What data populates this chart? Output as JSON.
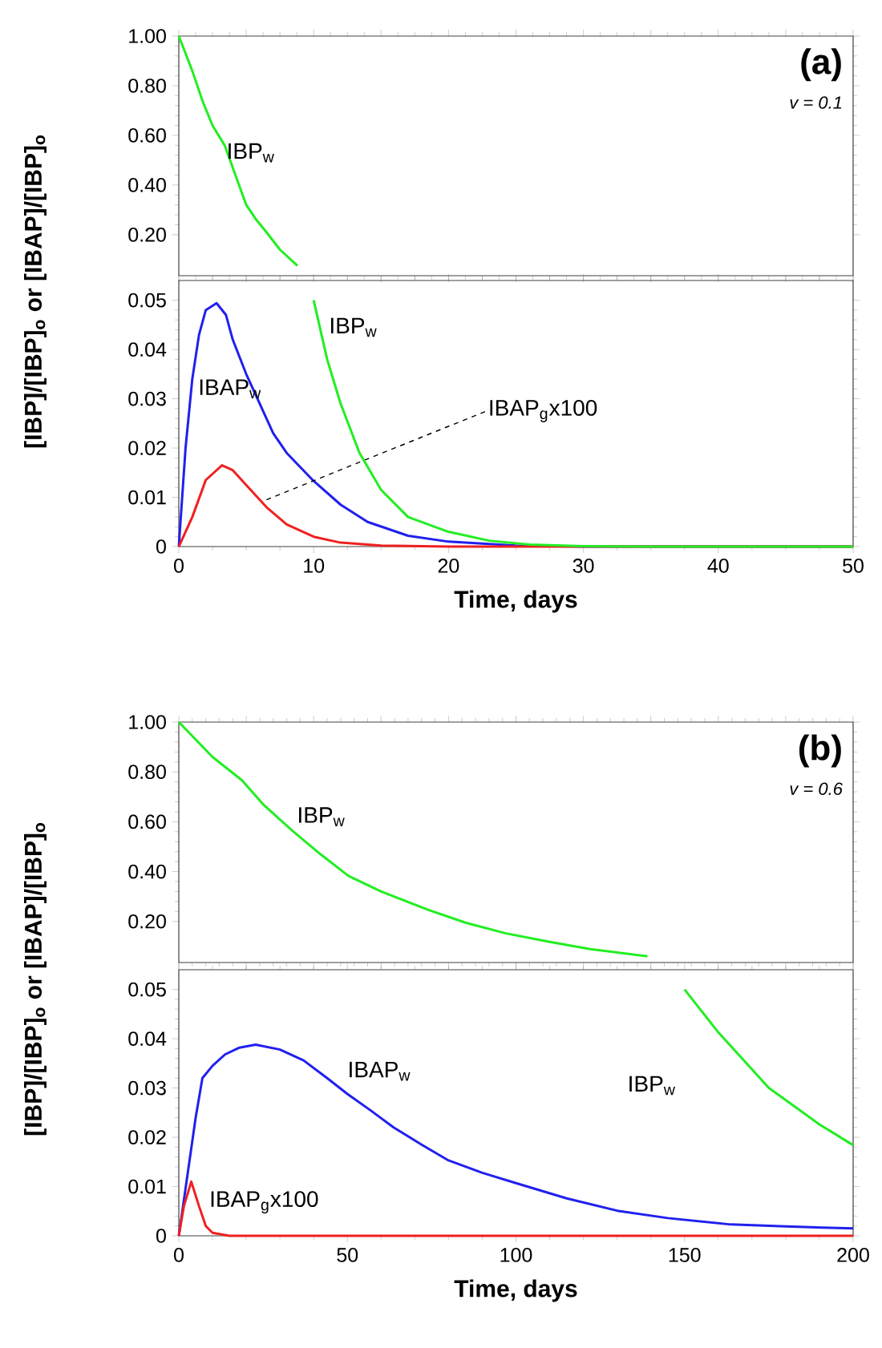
{
  "chart_data": [
    {
      "type": "line",
      "xlim": [
        0,
        50
      ],
      "ylim": [
        0.035,
        1.0
      ],
      "yticks": [
        {
          "value": 0.2,
          "label": "0.20"
        },
        {
          "value": 0.4,
          "label": "0.40"
        },
        {
          "value": 0.6,
          "label": "0.60"
        },
        {
          "value": 0.8,
          "label": "0.80"
        },
        {
          "value": 1.0,
          "label": "1.00"
        }
      ],
      "tick_labels": "y",
      "annotations": [
        "(a)",
        "v = 0.1"
      ],
      "series": [
        {
          "name": "IBP$_{w}$",
          "color": "#22ee22",
          "x": [
            0,
            1,
            1.75,
            2.5,
            3.4,
            4.2,
            5,
            5.75,
            6.5,
            7.5,
            8.8
          ],
          "values": [
            1.0,
            0.86,
            0.74,
            0.64,
            0.56,
            0.44,
            0.32,
            0.26,
            0.21,
            0.14,
            0.075
          ]
        }
      ]
    },
    {
      "type": "line",
      "xlim": [
        0,
        50
      ],
      "ylim": [
        0,
        0.054
      ],
      "xticks": [
        0,
        10,
        20,
        30,
        40,
        50
      ],
      "yticks": [
        0,
        0.01,
        0.02,
        0.03,
        0.04,
        0.05
      ],
      "xlabel": "Time, days",
      "ylabel": "[IBP]/[IBP]$_{o}$ or [IBAP]/[IBP]$_{o}$",
      "series": [
        {
          "name": "IBAP$_{w}$",
          "color": "#2020ee",
          "x": [
            0,
            0.5,
            1,
            1.5,
            2,
            2.8,
            3.5,
            4,
            5,
            6,
            7,
            8,
            10,
            12,
            14,
            17,
            20,
            25,
            30,
            50
          ],
          "values": [
            0,
            0.02,
            0.034,
            0.043,
            0.048,
            0.0494,
            0.047,
            0.042,
            0.035,
            0.029,
            0.023,
            0.019,
            0.0133,
            0.0085,
            0.005,
            0.0022,
            0.001,
            0.0002,
            0,
            0
          ]
        },
        {
          "name": "IBAP$_{g}$x100",
          "color": "#f02020",
          "x": [
            0,
            1,
            2,
            3.2,
            4,
            5,
            6.5,
            8,
            10,
            12,
            15,
            20,
            50
          ],
          "values": [
            0,
            0.006,
            0.0135,
            0.0165,
            0.0155,
            0.0125,
            0.008,
            0.0045,
            0.002,
            0.0008,
            0.0002,
            0,
            0
          ]
        },
        {
          "name": "IBP$_{w}$",
          "color": "#22ee22",
          "x": [
            10,
            11,
            12,
            13.4,
            15,
            17,
            20,
            23,
            26,
            30,
            35,
            50
          ],
          "values": [
            0.05,
            0.038,
            0.029,
            0.019,
            0.0115,
            0.006,
            0.003,
            0.0012,
            0.0004,
            0.0001,
            0,
            0
          ]
        }
      ]
    },
    {
      "type": "line",
      "xlim": [
        0,
        200
      ],
      "ylim": [
        0.035,
        1.0
      ],
      "yticks": [
        {
          "value": 0.2,
          "label": "0.20"
        },
        {
          "value": 0.4,
          "label": "0.40"
        },
        {
          "value": 0.6,
          "label": "0.60"
        },
        {
          "value": 0.8,
          "label": "0.80"
        },
        {
          "value": 1.0,
          "label": "1.00"
        }
      ],
      "tick_labels": "y",
      "annotations": [
        "(b)",
        "v = 0.6"
      ],
      "series": [
        {
          "name": "IBP$_{w}$",
          "color": "#22ee22",
          "x": [
            0,
            10,
            18.7,
            25,
            33.7,
            42,
            50.3,
            60,
            73.7,
            85,
            97,
            110,
            122,
            139
          ],
          "values": [
            1.0,
            0.86,
            0.767,
            0.67,
            0.564,
            0.47,
            0.383,
            0.32,
            0.248,
            0.195,
            0.152,
            0.118,
            0.089,
            0.06
          ]
        }
      ]
    },
    {
      "type": "line",
      "xlim": [
        0,
        200
      ],
      "ylim": [
        0,
        0.054
      ],
      "xticks": [
        0,
        50,
        100,
        150,
        200
      ],
      "yticks": [
        0,
        0.01,
        0.02,
        0.03,
        0.04,
        0.05
      ],
      "xlabel": "Time, days",
      "ylabel": "[IBP]/[IBP]$_{o}$ or [IBAP]/[IBP]$_{o}$",
      "series": [
        {
          "name": "IBAP$_{w}$",
          "color": "#2020ee",
          "x": [
            0,
            2,
            5,
            7,
            10,
            13.7,
            18,
            22.8,
            30,
            37,
            44,
            50,
            57,
            63.7,
            72,
            80,
            90,
            100,
            115,
            130,
            145,
            163.7,
            180,
            200
          ],
          "values": [
            0,
            0.0096,
            0.024,
            0.032,
            0.0345,
            0.0368,
            0.0382,
            0.0388,
            0.0378,
            0.0356,
            0.032,
            0.0288,
            0.0254,
            0.022,
            0.0185,
            0.0153,
            0.0128,
            0.0107,
            0.0076,
            0.0051,
            0.0036,
            0.0023,
            0.0019,
            0.0015
          ]
        },
        {
          "name": "IBAP$_{g}$x100",
          "color": "#f02020",
          "x": [
            0,
            1.5,
            3.7,
            6,
            8,
            10,
            15,
            200
          ],
          "values": [
            0,
            0.006,
            0.011,
            0.006,
            0.002,
            0.0006,
            0,
            0
          ]
        },
        {
          "name": "IBP$_{w}$",
          "color": "#22ee22",
          "x": [
            150,
            160,
            175,
            190,
            200
          ],
          "values": [
            0.05,
            0.0413,
            0.03,
            0.0226,
            0.0184
          ]
        }
      ]
    }
  ]
}
